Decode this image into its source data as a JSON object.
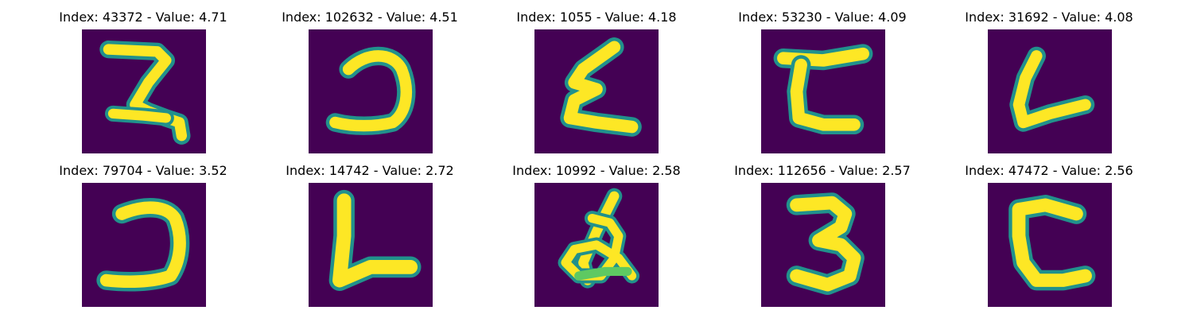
{
  "colors": {
    "background": "#440154",
    "stroke_edge": "#21918c",
    "stroke_mid": "#5ec962",
    "stroke_core": "#fde725"
  },
  "figure": {
    "panels": [
      {
        "title": "Index: 43372 - Value: 4.71",
        "glyph": "handwritten-z-like-2"
      },
      {
        "title": "Index: 102632 - Value: 4.51",
        "glyph": "handwritten-reversed-c"
      },
      {
        "title": "Index: 1055 - Value: 4.18",
        "glyph": "handwritten-epsilon-like-z"
      },
      {
        "title": "Index: 53230 - Value: 4.09",
        "glyph": "handwritten-c-with-top-bar"
      },
      {
        "title": "Index: 31692 - Value: 4.08",
        "glyph": "handwritten-l"
      },
      {
        "title": "Index: 79704 - Value: 3.52",
        "glyph": "handwritten-reversed-c"
      },
      {
        "title": "Index: 14742 - Value: 2.72",
        "glyph": "handwritten-l"
      },
      {
        "title": "Index: 10992 - Value: 2.58",
        "glyph": "handwritten-ampersand-like"
      },
      {
        "title": "Index: 112656 - Value: 2.57",
        "glyph": "handwritten-3"
      },
      {
        "title": "Index: 47472 - Value: 2.56",
        "glyph": "handwritten-c"
      }
    ]
  }
}
